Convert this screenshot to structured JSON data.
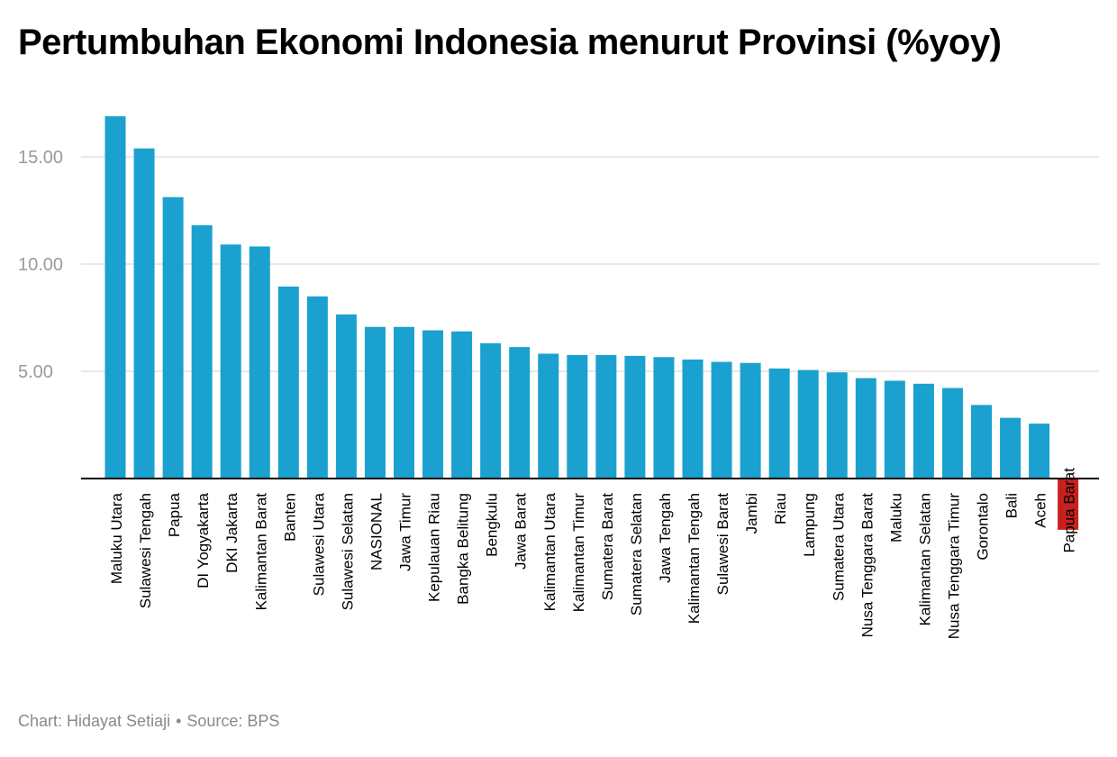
{
  "chart_data": {
    "type": "bar",
    "title": "Pertumbuhan Ekonomi Indonesia menurut Provinsi (%yoy)",
    "xlabel": "",
    "ylabel": "",
    "ylim": [
      0,
      17.5
    ],
    "yticks": [
      5,
      10,
      15
    ],
    "ytick_labels": [
      "5.00",
      "10.00",
      "15.00"
    ],
    "grid": true,
    "legend": "none",
    "colors": {
      "positive": "#1aa1cf",
      "negative": "#c7201f",
      "grid": "#e0e0e0",
      "axis": "#000000",
      "tick_text": "#9a9a9a"
    },
    "categories": [
      "Maluku Utara",
      "Sulawesi Tengah",
      "Papua",
      "DI Yogyakarta",
      "DKI Jakarta",
      "Kalimantan Barat",
      "Banten",
      "Sulawesi Utara",
      "Sulawesi Selatan",
      "NASIONAL",
      "Jawa Timur",
      "Kepulauan Riau",
      "Bangka Belitung",
      "Bengkulu",
      "Jawa Barat",
      "Kalimantan Utara",
      "Kalimantan Timur",
      "Sumatera Barat",
      "Sumatera Selatan",
      "Jawa Tengah",
      "Kalimantan Tengah",
      "Sulawesi Barat",
      "Jambi",
      "Riau",
      "Lampung",
      "Sumatera Utara",
      "Nusa Tenggara Barat",
      "Maluku",
      "Kalimantan Selatan",
      "Nusa Tenggara Timur",
      "Gorontalo",
      "Bali",
      "Aceh",
      "Papua Barat"
    ],
    "values": [
      16.89,
      15.39,
      13.12,
      11.81,
      10.91,
      10.82,
      8.95,
      8.49,
      7.65,
      7.07,
      7.07,
      6.91,
      6.86,
      6.31,
      6.13,
      5.82,
      5.76,
      5.76,
      5.72,
      5.66,
      5.55,
      5.44,
      5.39,
      5.13,
      5.06,
      4.95,
      4.68,
      4.56,
      4.42,
      4.22,
      3.43,
      2.83,
      2.56,
      -2.39
    ]
  },
  "footer": {
    "credit": "Chart: Hidayat Setiaji",
    "separator": "•",
    "source": "Source: BPS"
  }
}
